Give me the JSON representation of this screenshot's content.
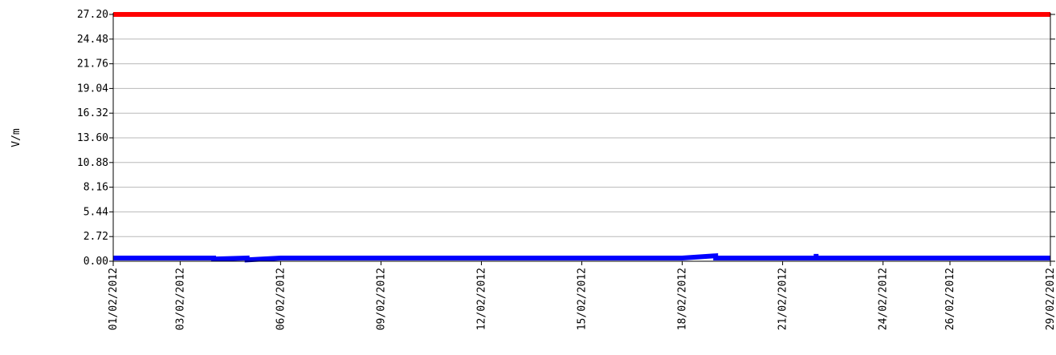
{
  "chart_data": {
    "type": "line",
    "title": "",
    "xlabel": "",
    "ylabel": "V/m",
    "ylim": [
      0,
      27.2
    ],
    "xlim": [
      "01/02/2012",
      "29/02/2012"
    ],
    "grid": true,
    "legend": "none",
    "y_ticks": [
      "0.00",
      "2.72",
      "5.44",
      "8.16",
      "10.88",
      "13.60",
      "16.32",
      "19.04",
      "21.76",
      "24.48",
      "27.20"
    ],
    "x_ticks": [
      "01/02/2012",
      "03/02/2012",
      "06/02/2012",
      "09/02/2012",
      "12/02/2012",
      "15/02/2012",
      "18/02/2012",
      "21/02/2012",
      "24/02/2012",
      "26/02/2012",
      "29/02/2012"
    ],
    "series": [
      {
        "color": "#ff0000",
        "x": [
          "01/02/2012",
          "29/02/2012"
        ],
        "values": [
          27.2,
          27.2
        ]
      },
      {
        "color": "#0000ff",
        "x": [
          "01/02/2012",
          "04/02/2012",
          "04/02/2012",
          "05/02/2012",
          "05/02/2012",
          "06/02/2012",
          "07/02/2012",
          "07/02/2012",
          "07/02/2012",
          "08/02/2012",
          "13/02/2012",
          "18/02/2012",
          "19/02/2012",
          "19/02/2012",
          "20/02/2012",
          "22/02/2012",
          "22/02/2012",
          "22/02/2012",
          "26/02/2012",
          "29/02/2012"
        ],
        "values": [
          0.35,
          0.35,
          0.25,
          0.35,
          0.15,
          0.35,
          0.35,
          0.1,
          0.35,
          0.35,
          0.35,
          0.35,
          0.6,
          0.35,
          0.35,
          0.35,
          0.8,
          0.35,
          0.35,
          0.35
        ]
      }
    ]
  }
}
